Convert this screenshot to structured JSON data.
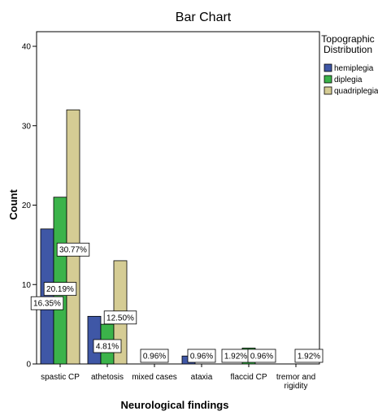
{
  "chart_data": {
    "type": "bar",
    "title": "Bar Chart",
    "xlabel": "Neurological findings",
    "ylabel": "Count",
    "ylim": [
      0,
      40
    ],
    "yticks": [
      0,
      10,
      20,
      30,
      40
    ],
    "grid": false,
    "legend_position": "top-right",
    "legend_title": [
      "Topographic",
      "Distribution"
    ],
    "categories": [
      [
        "spastic CP"
      ],
      [
        "athetosis"
      ],
      [
        "mixed cases"
      ],
      [
        "ataxia"
      ],
      [
        "flaccid CP"
      ],
      [
        "tremor and",
        "rigidity"
      ]
    ],
    "series": [
      {
        "name": "hemiplegia",
        "color": "#3f57a6",
        "values": [
          17,
          6,
          0,
          1,
          0,
          0
        ]
      },
      {
        "name": "diplegia",
        "color": "#3bb34a",
        "values": [
          21,
          5,
          0,
          0,
          2,
          0
        ]
      },
      {
        "name": "quadriplegia",
        "color": "#d5cc94",
        "values": [
          32,
          13,
          0,
          0,
          0,
          0
        ]
      }
    ],
    "data_labels": [
      {
        "text": "16.35%",
        "category": 0,
        "series": 0
      },
      {
        "text": "20.19%",
        "category": 0,
        "series": 1
      },
      {
        "text": "30.77%",
        "category": 0,
        "series": 2
      },
      {
        "text": "4.81%",
        "category": 1,
        "series": 1
      },
      {
        "text": "12.50%",
        "category": 1,
        "series": 2
      },
      {
        "text": "0.96%",
        "category": 2,
        "series": 1
      },
      {
        "text": "0.96%",
        "category": 3,
        "series": 1
      },
      {
        "text": "1.92%",
        "category": 4,
        "series": 0
      },
      {
        "text": "0.96%",
        "category": 4,
        "series": 2
      },
      {
        "text": "1.92%",
        "category": 5,
        "series": 2
      }
    ]
  }
}
